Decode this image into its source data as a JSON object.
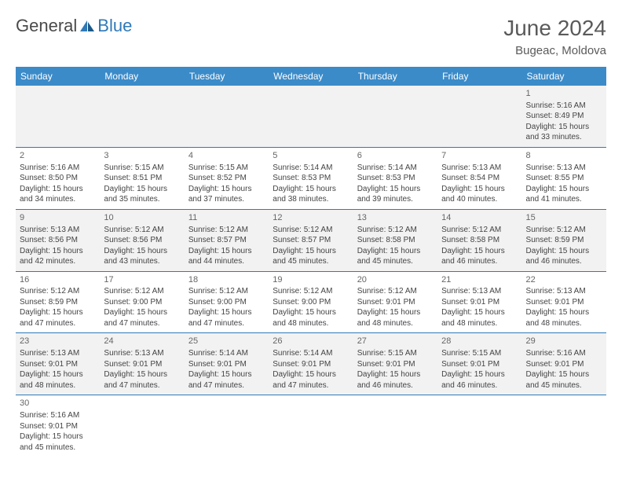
{
  "brand": {
    "part1": "General",
    "part2": "Blue"
  },
  "title": "June 2024",
  "location": "Bugeac, Moldova",
  "colors": {
    "header_bg": "#3b8bc9",
    "header_text": "#ffffff",
    "border": "#2f7ab8",
    "alt_row_bg": "#f2f2f2",
    "text": "#444444",
    "title_text": "#5a5a5a"
  },
  "weekdays": [
    "Sunday",
    "Monday",
    "Tuesday",
    "Wednesday",
    "Thursday",
    "Friday",
    "Saturday"
  ],
  "weeks": [
    [
      null,
      null,
      null,
      null,
      null,
      null,
      {
        "n": "1",
        "sr": "5:16 AM",
        "ss": "8:49 PM",
        "dl": "15 hours and 33 minutes."
      }
    ],
    [
      {
        "n": "2",
        "sr": "5:16 AM",
        "ss": "8:50 PM",
        "dl": "15 hours and 34 minutes."
      },
      {
        "n": "3",
        "sr": "5:15 AM",
        "ss": "8:51 PM",
        "dl": "15 hours and 35 minutes."
      },
      {
        "n": "4",
        "sr": "5:15 AM",
        "ss": "8:52 PM",
        "dl": "15 hours and 37 minutes."
      },
      {
        "n": "5",
        "sr": "5:14 AM",
        "ss": "8:53 PM",
        "dl": "15 hours and 38 minutes."
      },
      {
        "n": "6",
        "sr": "5:14 AM",
        "ss": "8:53 PM",
        "dl": "15 hours and 39 minutes."
      },
      {
        "n": "7",
        "sr": "5:13 AM",
        "ss": "8:54 PM",
        "dl": "15 hours and 40 minutes."
      },
      {
        "n": "8",
        "sr": "5:13 AM",
        "ss": "8:55 PM",
        "dl": "15 hours and 41 minutes."
      }
    ],
    [
      {
        "n": "9",
        "sr": "5:13 AM",
        "ss": "8:56 PM",
        "dl": "15 hours and 42 minutes."
      },
      {
        "n": "10",
        "sr": "5:12 AM",
        "ss": "8:56 PM",
        "dl": "15 hours and 43 minutes."
      },
      {
        "n": "11",
        "sr": "5:12 AM",
        "ss": "8:57 PM",
        "dl": "15 hours and 44 minutes."
      },
      {
        "n": "12",
        "sr": "5:12 AM",
        "ss": "8:57 PM",
        "dl": "15 hours and 45 minutes."
      },
      {
        "n": "13",
        "sr": "5:12 AM",
        "ss": "8:58 PM",
        "dl": "15 hours and 45 minutes."
      },
      {
        "n": "14",
        "sr": "5:12 AM",
        "ss": "8:58 PM",
        "dl": "15 hours and 46 minutes."
      },
      {
        "n": "15",
        "sr": "5:12 AM",
        "ss": "8:59 PM",
        "dl": "15 hours and 46 minutes."
      }
    ],
    [
      {
        "n": "16",
        "sr": "5:12 AM",
        "ss": "8:59 PM",
        "dl": "15 hours and 47 minutes."
      },
      {
        "n": "17",
        "sr": "5:12 AM",
        "ss": "9:00 PM",
        "dl": "15 hours and 47 minutes."
      },
      {
        "n": "18",
        "sr": "5:12 AM",
        "ss": "9:00 PM",
        "dl": "15 hours and 47 minutes."
      },
      {
        "n": "19",
        "sr": "5:12 AM",
        "ss": "9:00 PM",
        "dl": "15 hours and 48 minutes."
      },
      {
        "n": "20",
        "sr": "5:12 AM",
        "ss": "9:01 PM",
        "dl": "15 hours and 48 minutes."
      },
      {
        "n": "21",
        "sr": "5:13 AM",
        "ss": "9:01 PM",
        "dl": "15 hours and 48 minutes."
      },
      {
        "n": "22",
        "sr": "5:13 AM",
        "ss": "9:01 PM",
        "dl": "15 hours and 48 minutes."
      }
    ],
    [
      {
        "n": "23",
        "sr": "5:13 AM",
        "ss": "9:01 PM",
        "dl": "15 hours and 48 minutes."
      },
      {
        "n": "24",
        "sr": "5:13 AM",
        "ss": "9:01 PM",
        "dl": "15 hours and 47 minutes."
      },
      {
        "n": "25",
        "sr": "5:14 AM",
        "ss": "9:01 PM",
        "dl": "15 hours and 47 minutes."
      },
      {
        "n": "26",
        "sr": "5:14 AM",
        "ss": "9:01 PM",
        "dl": "15 hours and 47 minutes."
      },
      {
        "n": "27",
        "sr": "5:15 AM",
        "ss": "9:01 PM",
        "dl": "15 hours and 46 minutes."
      },
      {
        "n": "28",
        "sr": "5:15 AM",
        "ss": "9:01 PM",
        "dl": "15 hours and 46 minutes."
      },
      {
        "n": "29",
        "sr": "5:16 AM",
        "ss": "9:01 PM",
        "dl": "15 hours and 45 minutes."
      }
    ],
    [
      {
        "n": "30",
        "sr": "5:16 AM",
        "ss": "9:01 PM",
        "dl": "15 hours and 45 minutes."
      },
      null,
      null,
      null,
      null,
      null,
      null
    ]
  ],
  "labels": {
    "sunrise": "Sunrise:",
    "sunset": "Sunset:",
    "daylight": "Daylight:"
  }
}
